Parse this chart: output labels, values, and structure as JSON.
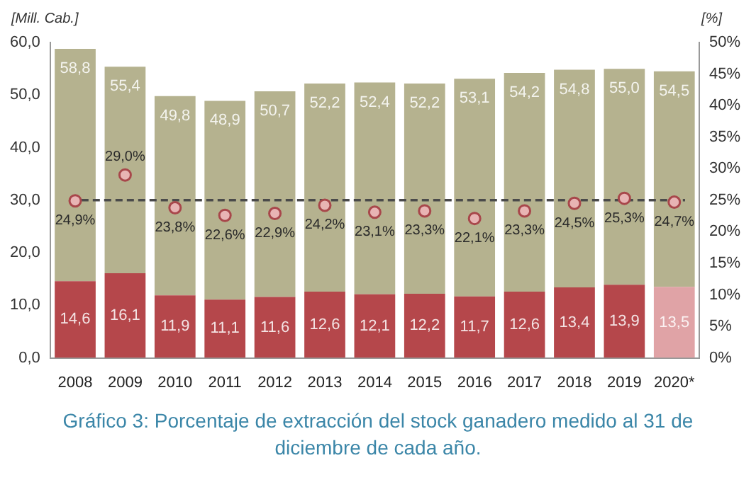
{
  "chart_data": {
    "type": "bar",
    "title": "Gráfico 3: Porcentaje de extracción del stock ganadero medido al 31 de diciembre de cada año.",
    "ylabel": "[Mill. Cab.]",
    "y2label": "[%]",
    "categories": [
      "2008",
      "2009",
      "2010",
      "2011",
      "2012",
      "2013",
      "2014",
      "2015",
      "2016",
      "2017",
      "2018",
      "2019",
      "2020*"
    ],
    "series": [
      {
        "colors": [
          "#b5474b",
          "#b5474b",
          "#b5474b",
          "#b5474b",
          "#b5474b",
          "#b5474b",
          "#b5474b",
          "#b5474b",
          "#b5474b",
          "#b5474b",
          "#b5474b",
          "#b5474b",
          "#e0a3a6"
        ],
        "values": [
          14.6,
          16.1,
          11.9,
          11.1,
          11.6,
          12.6,
          12.1,
          12.2,
          11.7,
          12.6,
          13.4,
          13.9,
          13.5
        ],
        "value_labels": [
          "14,6",
          "16,1",
          "11,9",
          "11,1",
          "11,6",
          "12,6",
          "12,1",
          "12,2",
          "11,7",
          "12,6",
          "13,4",
          "13,9",
          "13,5"
        ]
      },
      {
        "color": "#b5b28f",
        "values": [
          44.2,
          39.3,
          37.9,
          37.8,
          39.1,
          39.6,
          40.3,
          40.0,
          41.4,
          41.6,
          41.4,
          41.1,
          41.0
        ]
      },
      {
        "type": "scatter",
        "axis": "y2",
        "color": "#e8b4b4",
        "values": [
          24.9,
          29.0,
          23.8,
          22.6,
          22.9,
          24.2,
          23.1,
          23.3,
          22.1,
          23.3,
          24.5,
          25.3,
          24.7
        ],
        "value_labels": [
          "24,9%",
          "29,0%",
          "23,8%",
          "22,6%",
          "22,9%",
          "24,2%",
          "23,1%",
          "23,3%",
          "22,1%",
          "23,3%",
          "24,5%",
          "25,3%",
          "24,7%"
        ]
      }
    ],
    "ylim": [
      0,
      60
    ],
    "yticks": [
      {
        "value": 0,
        "label": "0,0"
      },
      {
        "value": 10,
        "label": "10,0"
      },
      {
        "value": 20,
        "label": "20,0"
      },
      {
        "value": 30,
        "label": "30,0"
      },
      {
        "value": 40,
        "label": "40,0"
      },
      {
        "value": 50,
        "label": "50,0"
      },
      {
        "value": 60,
        "label": "60,0"
      }
    ],
    "y2lim": [
      0,
      50
    ],
    "y2ticks": [
      {
        "value": 0,
        "label": "0%"
      },
      {
        "value": 5,
        "label": "5%"
      },
      {
        "value": 10,
        "label": "10%"
      },
      {
        "value": 15,
        "label": "15%"
      },
      {
        "value": 20,
        "label": "20%"
      },
      {
        "value": 25,
        "label": "25%"
      },
      {
        "value": 30,
        "label": "30%"
      },
      {
        "value": 35,
        "label": "35%"
      },
      {
        "value": 40,
        "label": "40%"
      },
      {
        "value": 45,
        "label": "45%"
      },
      {
        "value": 50,
        "label": "50%"
      }
    ],
    "ref_lines": [
      {
        "axis": "y2",
        "value": 25,
        "color": "#4a4a4a",
        "line_style": "dashed"
      }
    ],
    "totals": [
      "58,8",
      "55,4",
      "49,8",
      "48,9",
      "50,7",
      "52,2",
      "52,4",
      "52,2",
      "53,1",
      "54,2",
      "54,8",
      "55,0",
      "54,5"
    ],
    "stacked": true,
    "marker": "circle",
    "grid": false,
    "legend": false
  }
}
